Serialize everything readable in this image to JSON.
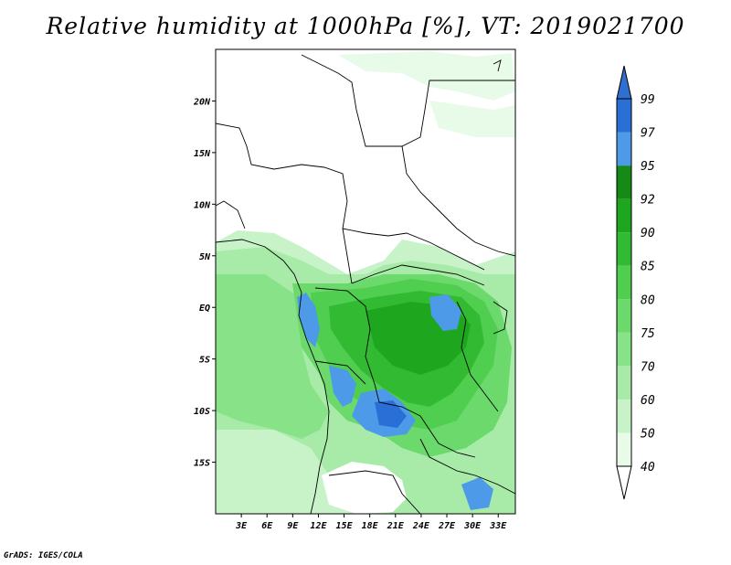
{
  "title": "Relative humidity at 1000hPa [%], VT: 2019021700",
  "credit": "GrADS: IGES/COLA",
  "map": {
    "lat_range": [
      -20,
      25
    ],
    "lon_range": [
      0,
      35
    ],
    "lat_ticks": [
      {
        "value": 20,
        "label": "20N"
      },
      {
        "value": 15,
        "label": "15N"
      },
      {
        "value": 10,
        "label": "10N"
      },
      {
        "value": 5,
        "label": "5N"
      },
      {
        "value": 0,
        "label": "EQ"
      },
      {
        "value": -5,
        "label": "5S"
      },
      {
        "value": -10,
        "label": "10S"
      },
      {
        "value": -15,
        "label": "15S"
      }
    ],
    "lon_ticks": [
      {
        "value": 3,
        "label": "3E"
      },
      {
        "value": 6,
        "label": "6E"
      },
      {
        "value": 9,
        "label": "9E"
      },
      {
        "value": 12,
        "label": "12E"
      },
      {
        "value": 15,
        "label": "15E"
      },
      {
        "value": 18,
        "label": "18E"
      },
      {
        "value": 21,
        "label": "21E"
      },
      {
        "value": 24,
        "label": "24E"
      },
      {
        "value": 27,
        "label": "27E"
      },
      {
        "value": 30,
        "label": "30E"
      },
      {
        "value": 33,
        "label": "33E"
      }
    ]
  },
  "colorbar": {
    "levels": [
      {
        "label": "40",
        "color": "#ffffff"
      },
      {
        "label": "50",
        "color": "#e8fbe8"
      },
      {
        "label": "60",
        "color": "#c8f3c8"
      },
      {
        "label": "70",
        "color": "#a8eba8"
      },
      {
        "label": "75",
        "color": "#88e388"
      },
      {
        "label": "80",
        "color": "#6cd96c"
      },
      {
        "label": "85",
        "color": "#4fce4f"
      },
      {
        "label": "90",
        "color": "#32bb32"
      },
      {
        "label": "92",
        "color": "#1fa61f"
      },
      {
        "label": "95",
        "color": "#168a16"
      },
      {
        "label": "97",
        "color": "#4d9be8"
      },
      {
        "label": "99",
        "color": "#2a6fd6"
      }
    ],
    "top_color": "#2f6fd0",
    "bottom_color": "#ffffff"
  }
}
